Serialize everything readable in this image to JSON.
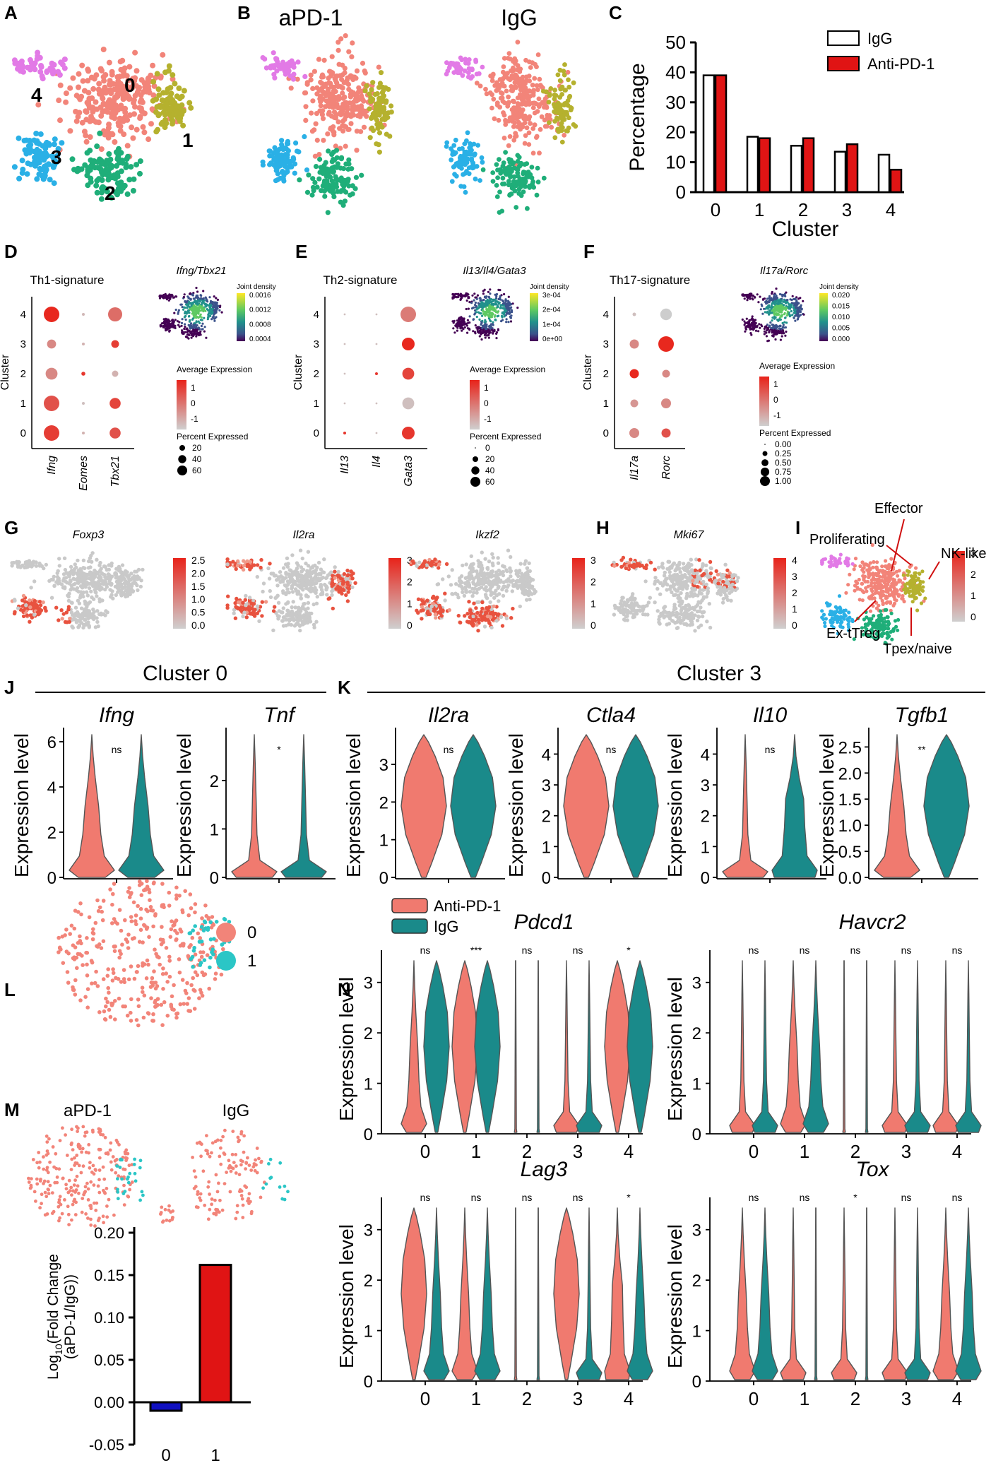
{
  "panel_letters": [
    "A",
    "B",
    "C",
    "D",
    "E",
    "F",
    "G",
    "H",
    "I",
    "J",
    "K",
    "L",
    "M",
    "N"
  ],
  "colors": {
    "c0": "#f28479",
    "c1": "#b5b12e",
    "c2": "#1fae79",
    "c3": "#2ab0e6",
    "c4": "#e27ae6",
    "antipd1": "#e01414",
    "igg": "#ffffff",
    "violin_pd1": "#f07a6f",
    "violin_igg": "#1a8a8a",
    "grey": "#c8c8c8",
    "teal_pt": "#2bc6c6",
    "blue_bar": "#1010c0"
  },
  "panel_a": {
    "cluster_labels": [
      "0",
      "1",
      "2",
      "3",
      "4"
    ]
  },
  "panel_b": {
    "titles": [
      "aPD-1",
      "IgG"
    ]
  },
  "chart_data": [
    {
      "panel": "C",
      "type": "bar",
      "xlabel": "Cluster",
      "ylabel": "Percentage",
      "categories": [
        "0",
        "1",
        "2",
        "3",
        "4"
      ],
      "ylim": [
        0,
        50
      ],
      "yticks": [
        "0",
        "10",
        "20",
        "30",
        "40",
        "50"
      ],
      "series": [
        {
          "name": "IgG",
          "values": [
            39,
            18.5,
            15.5,
            13.5,
            12.5
          ]
        },
        {
          "name": "Anti-PD-1",
          "values": [
            39,
            18,
            18,
            16,
            7.5
          ]
        }
      ],
      "legend": "top-right"
    },
    {
      "panel": "D",
      "type": "dotplot",
      "title": "Th1-signature",
      "genes": [
        "Ifng",
        "Eomes",
        "Tbx21"
      ],
      "clusters": [
        "0",
        "1",
        "2",
        "3",
        "4"
      ],
      "ylabel": "Cluster",
      "values": [
        [
          [
            0.9,
            60
          ],
          [
            -0.8,
            2
          ],
          [
            0.6,
            30
          ]
        ],
        [
          [
            0.6,
            60
          ],
          [
            -1,
            2
          ],
          [
            0.8,
            30
          ]
        ],
        [
          [
            -0.2,
            35
          ],
          [
            1,
            4
          ],
          [
            -0.8,
            10
          ]
        ],
        [
          [
            -0.2,
            20
          ],
          [
            -0.8,
            2
          ],
          [
            0.9,
            15
          ]
        ],
        [
          [
            1.5,
            60
          ],
          [
            -0.9,
            2
          ],
          [
            0.2,
            50
          ]
        ]
      ],
      "legend": {
        "avg_title": "Average Expression",
        "avg_ticks": [
          "1",
          "0",
          "-1"
        ],
        "pct_title": "Percent Expressed",
        "pct_ticks": [
          "20",
          "40",
          "60"
        ]
      },
      "inset_title": "Ifng/Tbx21",
      "inset_legend_title": "Joint density",
      "inset_ticks": [
        "0.0016",
        "0.0012",
        "0.0008",
        "0.0004"
      ]
    },
    {
      "panel": "E",
      "type": "dotplot",
      "title": "Th2-signature",
      "genes": [
        "Il13",
        "Il4",
        "Gata3"
      ],
      "clusters": [
        "0",
        "1",
        "2",
        "3",
        "4"
      ],
      "ylabel": "Cluster",
      "values": [
        [
          [
            1,
            2
          ],
          [
            -1,
            1
          ],
          [
            1,
            40
          ]
        ],
        [
          [
            -1,
            1
          ],
          [
            -1,
            1
          ],
          [
            -1,
            35
          ]
        ],
        [
          [
            -1,
            1
          ],
          [
            1,
            2
          ],
          [
            0.8,
            35
          ]
        ],
        [
          [
            -1,
            1
          ],
          [
            -1,
            1
          ],
          [
            1.2,
            40
          ]
        ],
        [
          [
            -1,
            1
          ],
          [
            -1,
            1
          ],
          [
            0,
            60
          ]
        ]
      ],
      "legend": {
        "avg_title": "Average Expression",
        "avg_ticks": [
          "1",
          "0",
          "-1"
        ],
        "pct_title": "Percent Expressed",
        "pct_ticks": [
          "0",
          "20",
          "40",
          "60"
        ]
      },
      "inset_title": "Il13/Il4/Gata3",
      "inset_legend_title": "Joint density",
      "inset_ticks": [
        "3e-04",
        "2e-04",
        "1e-04",
        "0e+00"
      ]
    },
    {
      "panel": "F",
      "type": "dotplot",
      "title": "Th17-signature",
      "genes": [
        "Il17a",
        "Rorc"
      ],
      "clusters": [
        "0",
        "1",
        "2",
        "3",
        "4"
      ],
      "ylabel": "Cluster",
      "values": [
        [
          [
            -0.2,
            0.4
          ],
          [
            0.6,
            0.35
          ]
        ],
        [
          [
            -0.4,
            0.25
          ],
          [
            -0.2,
            0.4
          ]
        ],
        [
          [
            1.5,
            0.35
          ],
          [
            -0.2,
            0.25
          ]
        ],
        [
          [
            -0.2,
            0.35
          ],
          [
            1.4,
            1.0
          ]
        ],
        [
          [
            -1,
            0.05
          ],
          [
            -1.2,
            0.55
          ]
        ]
      ],
      "legend": {
        "avg_title": "Average Expression",
        "avg_ticks": [
          "1",
          "0",
          "-1"
        ],
        "pct_title": "Percent Expressed",
        "pct_ticks": [
          "0.00",
          "0.25",
          "0.50",
          "0.75",
          "1.00"
        ]
      },
      "inset_title": "Il17a/Rorc",
      "inset_legend_title": "Joint density",
      "inset_ticks": [
        "0.020",
        "0.015",
        "0.010",
        "0.005",
        "0.000"
      ]
    },
    {
      "panel": "G",
      "type": "feature_umap",
      "titles": [
        "Foxp3",
        "Il2ra",
        "Ikzf2"
      ],
      "scales": [
        [
          "2.5",
          "2.0",
          "1.5",
          "1.0",
          "0.5",
          "0.0"
        ],
        [
          "3",
          "2",
          "1",
          "0"
        ],
        [
          "3",
          "2",
          "1",
          "0"
        ]
      ]
    },
    {
      "panel": "H",
      "type": "feature_umap",
      "titles": [
        "Mki67"
      ],
      "scales": [
        [
          "4",
          "3",
          "2",
          "1",
          "0"
        ]
      ]
    },
    {
      "panel": "I",
      "type": "annotated_umap",
      "labels": [
        "Effector",
        "Proliferating",
        "NK-like",
        "Ex-tTreg",
        "Tpex/naive"
      ],
      "scale": [
        "3",
        "2",
        "1",
        "0"
      ]
    },
    {
      "panel": "J",
      "type": "violin",
      "header": "Cluster 0",
      "ylabel": "Expression level",
      "genes": [
        {
          "name": "Ifng",
          "sig": "ns",
          "yticks": [
            "0",
            "2",
            "4",
            "6"
          ],
          "ymax": 6
        },
        {
          "name": "Tnf",
          "sig": "*",
          "yticks": [
            "0",
            "1",
            "2"
          ],
          "ymax": 2.8
        }
      ]
    },
    {
      "panel": "K",
      "type": "violin",
      "header": "Cluster 3",
      "ylabel": "Expression level",
      "genes": [
        {
          "name": "Il2ra",
          "sig": "ns",
          "yticks": [
            "0",
            "1",
            "2",
            "3"
          ],
          "ymax": 3.6
        },
        {
          "name": "Ctla4",
          "sig": "ns",
          "yticks": [
            "0",
            "1",
            "2",
            "3",
            "4"
          ],
          "ymax": 4.4
        },
        {
          "name": "Il10",
          "sig": "ns",
          "yticks": [
            "0",
            "1",
            "2",
            "3",
            "4"
          ],
          "ymax": 4.4
        },
        {
          "name": "Tgfb1",
          "sig": "**",
          "yticks": [
            "0.0",
            "0.5",
            "1.0",
            "1.5",
            "2.0",
            "2.5"
          ],
          "ymax": 2.6
        }
      ]
    },
    {
      "panel": "L",
      "type": "scatter",
      "legend": [
        "0",
        "1"
      ]
    },
    {
      "panel": "M",
      "type": "bar",
      "titles": [
        "aPD-1",
        "IgG"
      ],
      "ylabel_html": "Log10(Fold Change\n(aPD-1/IgG))",
      "ylabel_line1": "Log",
      "ylabel_sub": "10",
      "ylabel_rest": "(Fold Change",
      "ylabel_line2": "(aPD-1/IgG))",
      "categories": [
        "0",
        "1"
      ],
      "values": [
        -0.01,
        0.162
      ],
      "ylim": [
        -0.05,
        0.2
      ],
      "yticks": [
        "-0.05",
        "0.00",
        "0.05",
        "0.10",
        "0.15",
        "0.20"
      ]
    },
    {
      "panel": "N",
      "type": "violin",
      "legend": [
        "Anti-PD-1",
        "IgG"
      ],
      "ylabel": "Expression level",
      "categories": [
        "0",
        "1",
        "2",
        "3",
        "4"
      ],
      "yticks": [
        "0",
        "1",
        "2",
        "3"
      ],
      "genes": [
        {
          "name": "Pdcd1",
          "sig": [
            "ns",
            "***",
            "ns",
            "ns",
            "*"
          ]
        },
        {
          "name": "Havcr2",
          "sig": [
            "ns",
            "ns",
            "ns",
            "ns",
            "ns"
          ]
        },
        {
          "name": "Lag3",
          "sig": [
            "ns",
            "ns",
            "ns",
            "ns",
            "*"
          ]
        },
        {
          "name": "Tox",
          "sig": [
            "ns",
            "ns",
            "*",
            "ns",
            "ns"
          ]
        }
      ]
    }
  ]
}
